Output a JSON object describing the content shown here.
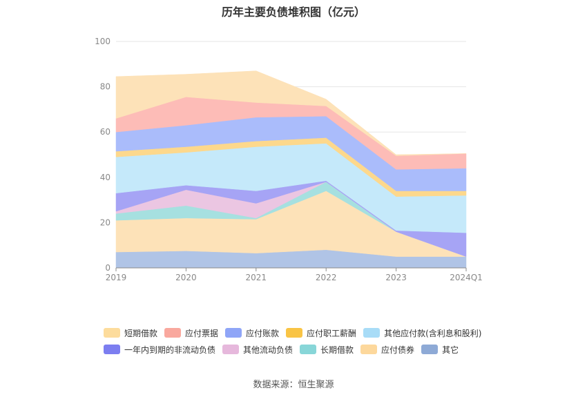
{
  "source": "数据来源：恒生聚源",
  "chart_data": {
    "type": "area",
    "stacked": true,
    "title": "历年主要负债堆积图（亿元）",
    "categories": [
      "2019",
      "2020",
      "2021",
      "2022",
      "2023",
      "2024Q1"
    ],
    "ylim": [
      0,
      100
    ],
    "yticks": [
      0,
      20,
      40,
      60,
      80,
      100
    ],
    "grid": true,
    "legend_position": "bottom",
    "series": [
      {
        "name": "其它",
        "color": "#b0c4e6",
        "values": [
          7,
          7.5,
          6.5,
          8,
          5,
          5
        ]
      },
      {
        "name": "应付债券",
        "color": "#fde2b8",
        "values": [
          14,
          14.5,
          15,
          26,
          11,
          0
        ]
      },
      {
        "name": "长期借款",
        "color": "#a6e0e0",
        "values": [
          3,
          5.5,
          0.5,
          4,
          0,
          0
        ]
      },
      {
        "name": "其他流动负债",
        "color": "#ebc6e2",
        "values": [
          1,
          7,
          6.5,
          0,
          0,
          0
        ]
      },
      {
        "name": "一年内到期的非流动负债",
        "color": "#a6a4f5",
        "values": [
          8,
          2,
          5.5,
          0.5,
          0.5,
          10.5
        ]
      },
      {
        "name": "其他应付款(含利息和股利)",
        "color": "#c5e9fa",
        "values": [
          16,
          14.5,
          19.5,
          16.5,
          15,
          16.5
        ]
      },
      {
        "name": "应付职工薪酬",
        "color": "#fdd88c",
        "values": [
          2.5,
          2.5,
          2.5,
          2.5,
          2.5,
          2
        ]
      },
      {
        "name": "应付账款",
        "color": "#aabcfb",
        "values": [
          8.5,
          9.5,
          10.5,
          9.5,
          9.5,
          10
        ]
      },
      {
        "name": "应付票据",
        "color": "#fdbcb7",
        "values": [
          6,
          12.5,
          6.5,
          4.5,
          6,
          6.5
        ]
      },
      {
        "name": "短期借款",
        "color": "#fde2b8",
        "values": [
          18.5,
          10,
          14,
          3,
          0.5,
          0
        ]
      }
    ]
  },
  "legend": {
    "rows": [
      [
        {
          "label": "短期借款",
          "color": "#fddc9c"
        },
        {
          "label": "应付票据",
          "color": "#f9a89e"
        },
        {
          "label": "应付账款",
          "color": "#8fa5f7"
        },
        {
          "label": "应付职工薪酬",
          "color": "#f9c445"
        },
        {
          "label": "其他应付款(含利息和股利)",
          "color": "#a8dcf7"
        }
      ],
      [
        {
          "label": "一年内到期的非流动负债",
          "color": "#7c7ef0"
        },
        {
          "label": "其他流动负债",
          "color": "#e6b8dc"
        },
        {
          "label": "长期借款",
          "color": "#88d6d8"
        },
        {
          "label": "应付债券",
          "color": "#fdd89c"
        },
        {
          "label": "其它",
          "color": "#8eaad6"
        }
      ]
    ]
  }
}
